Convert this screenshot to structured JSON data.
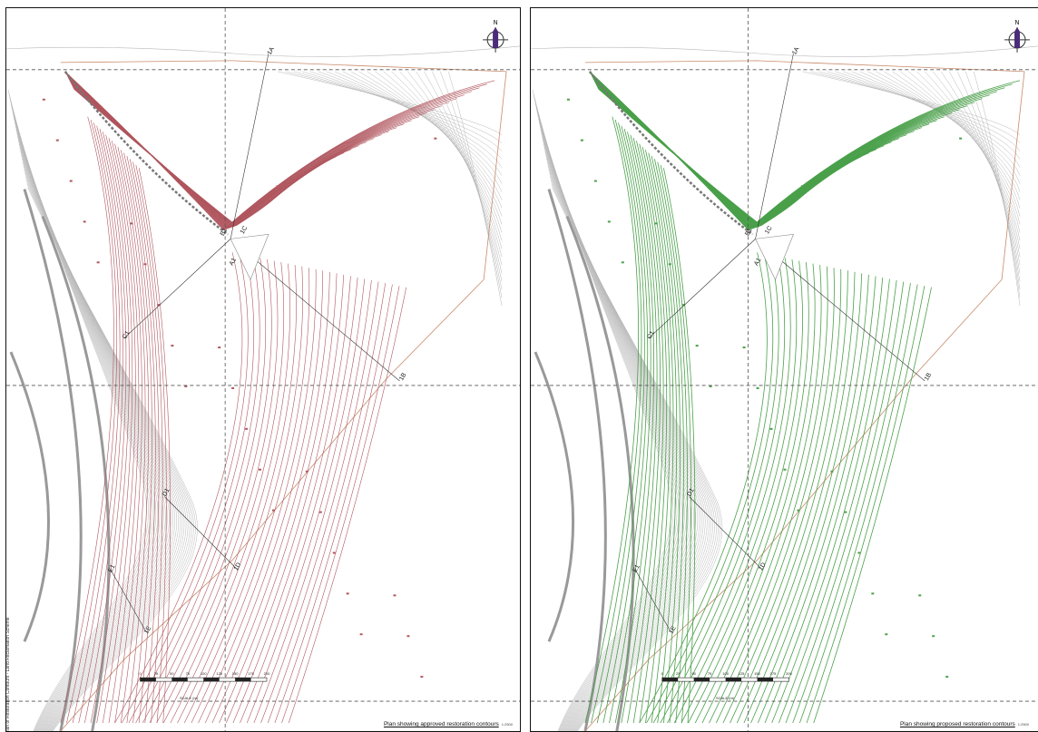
{
  "left_panel": {
    "caption": "Plan showing approved restoration contours",
    "caption_scale": "1:2500",
    "contour_color": "#b0565e",
    "side_text": "Plan of Restoration Contours - Land Reclamation Scheme"
  },
  "right_panel": {
    "caption": "Plan showing proposed restoration contours",
    "caption_scale": "1:2500",
    "contour_color": "#4aa04a"
  },
  "north_arrow_label": "N",
  "section_labels": [
    "1A",
    "1B",
    "1C",
    "1D",
    "1E",
    "C1",
    "D1",
    "E1",
    "B1",
    "A1"
  ],
  "scale_bar": {
    "ticks": [
      "0",
      "25",
      "50",
      "75",
      "100",
      "125",
      "150",
      "175",
      "200"
    ],
    "unit_label": "SCALE (m)"
  },
  "base_contour_color": "#b8b8b8",
  "grid_line_color": "#555555"
}
